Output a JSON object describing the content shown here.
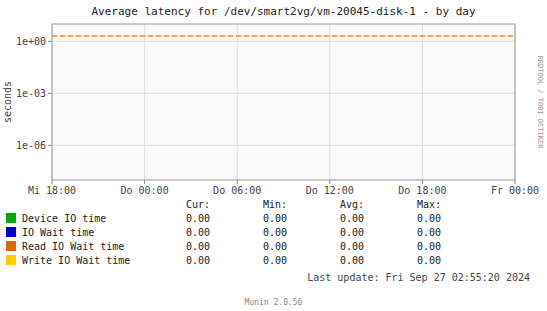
{
  "chart_data": {
    "type": "line",
    "title": "Average latency for /dev/smart2vg/vm-20045-disk-1 - by day",
    "y_label": "seconds",
    "categories": [
      "Mi 18:00",
      "Do 00:00",
      "Do 06:00",
      "Do 12:00",
      "Do 18:00",
      "Fr 00:00"
    ],
    "log": "y",
    "ylim": [
      1e-08,
      10
    ],
    "yticks": [
      {
        "value": 1e-06,
        "label": "1e-06"
      },
      {
        "value": 0.001,
        "label": "1e-03"
      },
      {
        "value": 1,
        "label": "1e+00"
      }
    ],
    "grid": true,
    "reference_lines": [
      {
        "value": 2.0,
        "color": "#ff8800",
        "line_style": "dashed"
      }
    ],
    "summary_headers": [
      "Cur:",
      "Min:",
      "Avg:",
      "Max:"
    ],
    "series": [
      {
        "name": "Device IO time",
        "color": "#00aa00",
        "values": [
          null,
          null,
          null,
          null,
          null,
          null
        ],
        "summary": [
          0,
          0,
          0,
          0
        ],
        "summary_labels": [
          "0.00",
          "0.00",
          "0.00",
          "0.00"
        ]
      },
      {
        "name": "IO Wait time",
        "color": "#0000cc",
        "values": [
          null,
          null,
          null,
          null,
          null,
          null
        ],
        "summary": [
          0,
          0,
          0,
          0
        ],
        "summary_labels": [
          "0.00",
          "0.00",
          "0.00",
          "0.00"
        ]
      },
      {
        "name": "Read IO Wait time",
        "color": "#dd6600",
        "values": [
          null,
          null,
          null,
          null,
          null,
          null
        ],
        "summary": [
          0,
          0,
          0,
          0
        ],
        "summary_labels": [
          "0.00",
          "0.00",
          "0.00",
          "0.00"
        ]
      },
      {
        "name": "Write IO Wait time",
        "color": "#ffcc00",
        "values": [
          null,
          null,
          null,
          null,
          null,
          null
        ],
        "summary": [
          0,
          0,
          0,
          0
        ],
        "summary_labels": [
          "0.00",
          "0.00",
          "0.00",
          "0.00"
        ]
      }
    ],
    "annotations": [
      "Last update: Fri Sep 27 02:55:20 2024",
      "Munin 2.0.56",
      "RRDTOOL / TOBI OETIKER"
    ]
  }
}
